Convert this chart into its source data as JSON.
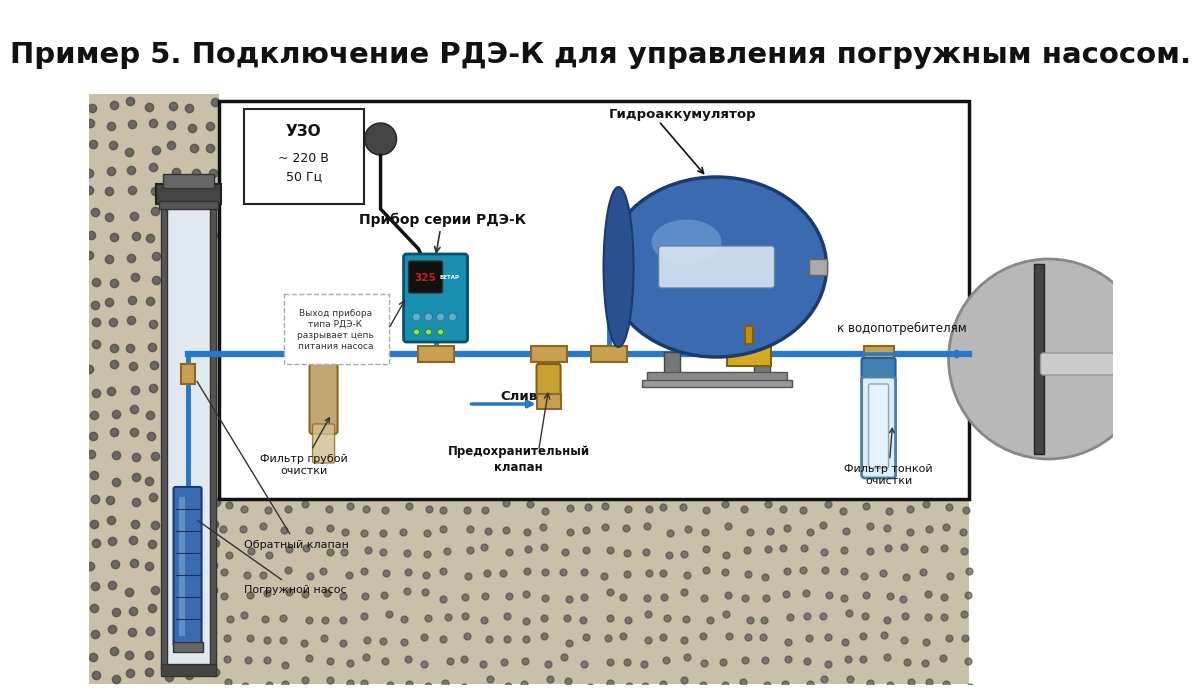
{
  "title": "Пример 5. Подключение РДЭ-К для управления погружным насосом.",
  "title_fontsize": 21,
  "title_fontweight": "bold",
  "bg_color": "#ffffff",
  "pipe_color": "#2878c8",
  "pipe_lw": 3.5,
  "labels": {
    "uzo": "УЗО",
    "uzo_sub": "~ 220 В\n50 Гц",
    "rdek": "Прибор серии РДЭ-К",
    "hydro": "Гидроаккумулятор",
    "water_consumers": "к водопотребителям",
    "filter_coarse": "Фильтр грубой\nочистки",
    "safety_valve": "Предохранительный\nклапан",
    "drain": "Слив",
    "filter_fine": "Фильтр тонкой\nочистки",
    "check_valve": "Обратный клапан",
    "pump": "Погружной насос",
    "rdek_exit": "Выход прибора\nтипа РДЭ-К\nразрывает цепь\nпитания насоса"
  },
  "colors": {
    "acc_body": "#3a6ab0",
    "acc_hl": "#7aabdd",
    "acc_dark": "#1a3a70",
    "rdek_teal": "#1a90b0",
    "rdek_red": "#cc2020",
    "filter_brass": "#c8a050",
    "filter_brass_dark": "#8a6820",
    "pump_blue": "#3a6ab0",
    "pump_hl": "#7aabdd",
    "valve_brass": "#c8a030",
    "cable": "#111111",
    "soil": "#c8c0a8",
    "soil_dot": "#888880",
    "wall": "#555555",
    "well_inner": "#e0e8f0",
    "circle_bg": "#b8b8b8",
    "water_line": "#b0b8c0"
  }
}
